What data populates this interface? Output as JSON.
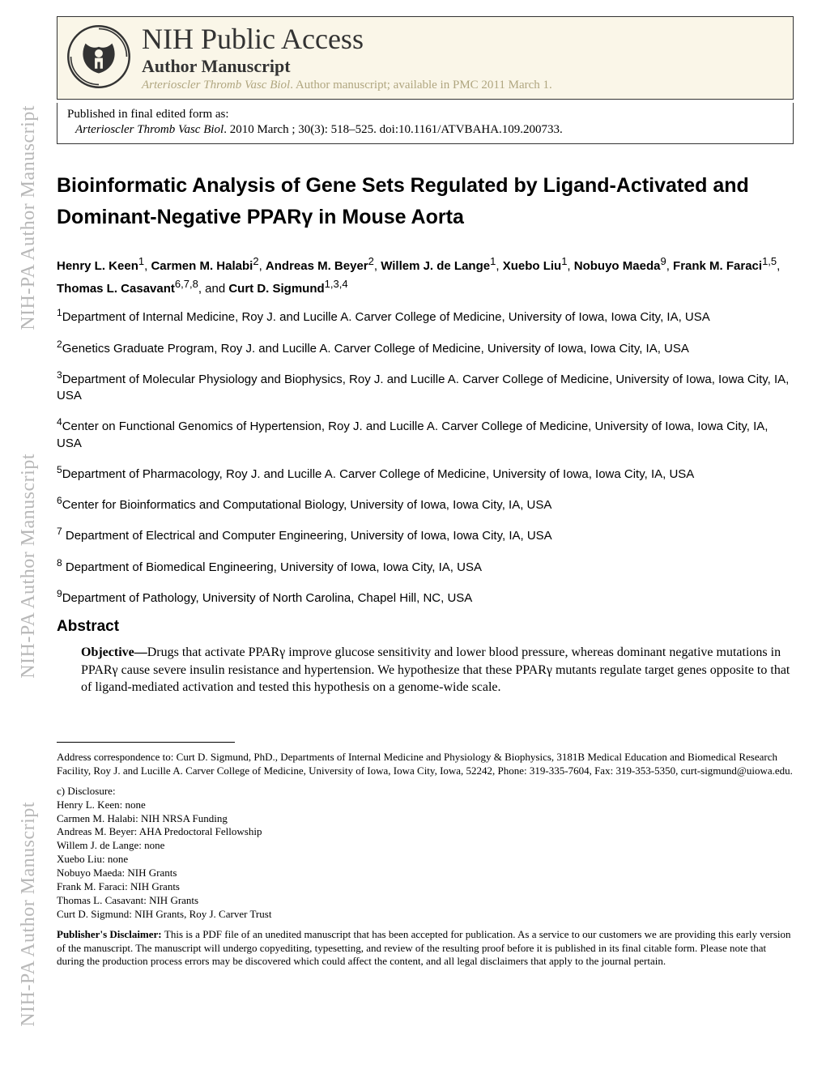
{
  "header": {
    "nih_title": "NIH Public Access",
    "author_manuscript": "Author Manuscript",
    "journal_line_italic": "Arterioscler Thromb Vasc Biol",
    "journal_line_rest": ". Author manuscript; available in PMC 2011 March 1."
  },
  "publication": {
    "line1": "Published in final edited form as:",
    "journal_italic": "Arterioscler Thromb Vasc Biol",
    "citation_rest": ". 2010 March ; 30(3): 518–525. doi:10.1161/ATVBAHA.109.200733."
  },
  "title": "Bioinformatic Analysis of Gene Sets Regulated by Ligand-Activated and Dominant-Negative PPARγ in Mouse Aorta",
  "authors": [
    {
      "name": "Henry L. Keen",
      "sup": "1"
    },
    {
      "name": "Carmen M. Halabi",
      "sup": "2"
    },
    {
      "name": "Andreas M. Beyer",
      "sup": "2"
    },
    {
      "name": "Willem J. de Lange",
      "sup": "1"
    },
    {
      "name": "Xuebo Liu",
      "sup": "1"
    },
    {
      "name": "Nobuyo Maeda",
      "sup": "9"
    },
    {
      "name": "Frank M. Faraci",
      "sup": "1,5"
    },
    {
      "name": "Thomas L. Casavant",
      "sup": "6,7,8"
    },
    {
      "name": "Curt D. Sigmund",
      "sup": "1,3,4"
    }
  ],
  "affiliations": [
    {
      "num": "1",
      "text": "Department of Internal Medicine, Roy J. and Lucille A. Carver College of Medicine, University of Iowa, Iowa City, IA, USA"
    },
    {
      "num": "2",
      "text": "Genetics Graduate Program, Roy J. and Lucille A. Carver College of Medicine, University of Iowa, Iowa City, IA, USA"
    },
    {
      "num": "3",
      "text": "Department of Molecular Physiology and Biophysics, Roy J. and Lucille A. Carver College of Medicine, University of Iowa, Iowa City, IA, USA"
    },
    {
      "num": "4",
      "text": "Center on Functional Genomics of Hypertension, Roy J. and Lucille A. Carver College of Medicine, University of Iowa, Iowa City, IA, USA"
    },
    {
      "num": "5",
      "text": "Department of Pharmacology, Roy J. and Lucille A. Carver College of Medicine, University of Iowa, Iowa City, IA, USA"
    },
    {
      "num": "6",
      "text": "Center for Bioinformatics and Computational Biology, University of Iowa, Iowa City, IA, USA"
    },
    {
      "num": "7",
      "text": " Department of Electrical and Computer Engineering, University of Iowa, Iowa City, IA, USA"
    },
    {
      "num": "8",
      "text": " Department of Biomedical Engineering, University of Iowa, Iowa City, IA, USA"
    },
    {
      "num": "9",
      "text": "Department of Pathology, University of North Carolina, Chapel Hill, NC, USA"
    }
  ],
  "abstract": {
    "heading": "Abstract",
    "objective_label": "Objective—",
    "objective_text": "Drugs that activate PPARγ improve glucose sensitivity and lower blood pressure, whereas dominant negative mutations in PPARγ cause severe insulin resistance and hypertension. We hypothesize that these PPARγ mutants regulate target genes opposite to that of ligand-mediated activation and tested this hypothesis on a genome-wide scale."
  },
  "footer": {
    "correspondence": "Address correspondence to: Curt D. Sigmund, PhD., Departments of Internal Medicine and Physiology & Biophysics, 3181B Medical Education and Biomedical Research Facility, Roy J. and Lucille A. Carver College of Medicine, University of Iowa, Iowa City, Iowa, 52242, Phone: 319-335-7604, Fax: 319-353-5350, curt-sigmund@uiowa.edu.",
    "disclosure_label": "c) Disclosure:",
    "disclosures": [
      "Henry L. Keen: none",
      "Carmen M. Halabi: NIH NRSA Funding",
      "Andreas M. Beyer: AHA Predoctoral Fellowship",
      "Willem J. de Lange: none",
      "Xuebo Liu: none",
      "Nobuyo Maeda: NIH Grants",
      "Frank M. Faraci: NIH Grants",
      "Thomas L. Casavant: NIH Grants",
      "Curt D. Sigmund: NIH Grants, Roy J. Carver Trust"
    ],
    "disclaimer_label": "Publisher's Disclaimer: ",
    "disclaimer_text": "This is a PDF file of an unedited manuscript that has been accepted for publication. As a service to our customers we are providing this early version of the manuscript. The manuscript will undergo copyediting, typesetting, and review of the resulting proof before it is published in its final citable form. Please note that during the production process errors may be discovered which could affect the content, and all legal disclaimers that apply to the journal pertain."
  },
  "watermark": "NIH-PA Author Manuscript",
  "colors": {
    "header_bg": "#faf6e8",
    "journal_gray": "#b0a680",
    "watermark_gray": "#b8b8b8",
    "text": "#000000"
  }
}
